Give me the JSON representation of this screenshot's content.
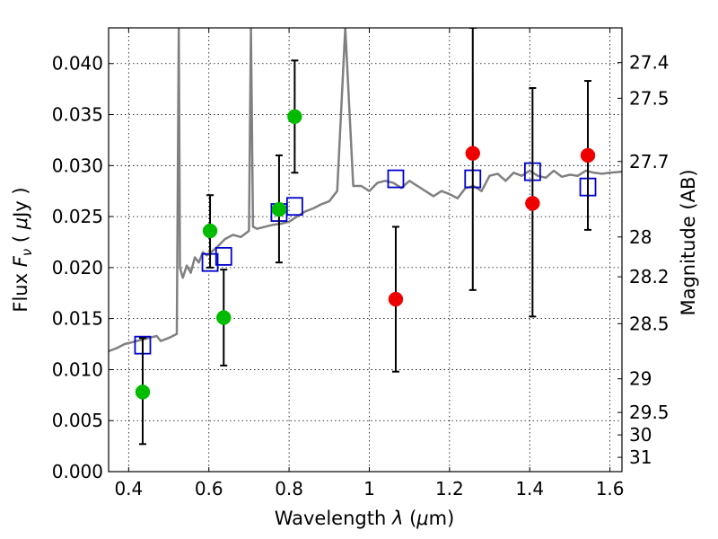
{
  "chart_data": {
    "type": "scatter",
    "title": "",
    "xlabel_parts": [
      "Wavelength  ",
      "λ",
      " (",
      "μ",
      "m)"
    ],
    "ylabel_parts": [
      "Flux  ",
      "F",
      "ν",
      "  (  ",
      "μ",
      "Jy )"
    ],
    "y2label": "Magnitude (AB)",
    "xlim": [
      0.35,
      1.63
    ],
    "ylim": [
      0.0,
      0.0435
    ],
    "grid": true,
    "x_ticks": [
      0.4,
      0.6,
      0.8,
      1.0,
      1.2,
      1.4,
      1.6
    ],
    "x_tick_labels": [
      "0.4",
      "0.6",
      "0.8",
      "1",
      "1.2",
      "1.4",
      "1.6"
    ],
    "y_ticks": [
      0.0,
      0.005,
      0.01,
      0.015,
      0.02,
      0.025,
      0.03,
      0.035,
      0.04
    ],
    "y_tick_labels": [
      "0.000",
      "0.005",
      "0.010",
      "0.015",
      "0.020",
      "0.025",
      "0.030",
      "0.035",
      "0.040"
    ],
    "y2_ticks": [
      {
        "label": "27.4",
        "flux": 0.0401
      },
      {
        "label": "27.5",
        "flux": 0.0366
      },
      {
        "label": "27.7",
        "flux": 0.0304
      },
      {
        "label": "28",
        "flux": 0.023
      },
      {
        "label": "28.2",
        "flux": 0.0191
      },
      {
        "label": "28.5",
        "flux": 0.0145
      },
      {
        "label": "29",
        "flux": 0.0091
      },
      {
        "label": "29.5",
        "flux": 0.0058
      },
      {
        "label": "30",
        "flux": 0.0036
      },
      {
        "label": "31",
        "flux": 0.0014
      }
    ],
    "series": [
      {
        "marker": "circle",
        "color": "#00bb00",
        "x": [
          0.435,
          0.603,
          0.637,
          0.775,
          0.814
        ],
        "y": [
          0.0078,
          0.0236,
          0.0151,
          0.0257,
          0.0348
        ],
        "yerr_low": [
          0.0027,
          0.02,
          0.0104,
          0.0205,
          0.0293
        ],
        "yerr_high": [
          0.0131,
          0.0271,
          0.0198,
          0.031,
          0.0403
        ]
      },
      {
        "marker": "circle",
        "color": "#ee0000",
        "x": [
          1.066,
          1.258,
          1.407,
          1.545
        ],
        "y": [
          0.0169,
          0.0312,
          0.0263,
          0.031
        ],
        "yerr_low": [
          0.0098,
          0.0178,
          0.0152,
          0.0237
        ],
        "yerr_high": [
          0.024,
          0.0435,
          0.0376,
          0.0383
        ]
      },
      {
        "marker": "open-square",
        "color": "#0000cc",
        "x": [
          0.435,
          0.603,
          0.637,
          0.775,
          0.814,
          1.066,
          1.258,
          1.407,
          1.545
        ],
        "y": [
          0.0124,
          0.0205,
          0.0211,
          0.0254,
          0.026,
          0.0287,
          0.0287,
          0.0294,
          0.0279
        ]
      },
      {
        "marker": "line",
        "color": "#808080",
        "x": [
          0.35,
          0.37,
          0.39,
          0.41,
          0.43,
          0.45,
          0.47,
          0.48,
          0.5,
          0.52,
          0.525,
          0.528,
          0.535,
          0.545,
          0.555,
          0.565,
          0.575,
          0.585,
          0.595,
          0.605,
          0.62,
          0.64,
          0.66,
          0.68,
          0.7,
          0.705,
          0.71,
          0.72,
          0.74,
          0.76,
          0.78,
          0.8,
          0.82,
          0.84,
          0.86,
          0.88,
          0.9,
          0.92,
          0.94,
          0.96,
          0.98,
          1.0,
          1.02,
          1.04,
          1.06,
          1.08,
          1.1,
          1.12,
          1.14,
          1.16,
          1.18,
          1.2,
          1.22,
          1.24,
          1.26,
          1.28,
          1.3,
          1.32,
          1.34,
          1.36,
          1.38,
          1.4,
          1.42,
          1.44,
          1.46,
          1.48,
          1.5,
          1.52,
          1.54,
          1.56,
          1.58,
          1.6,
          1.63
        ],
        "y": [
          0.0118,
          0.0121,
          0.0125,
          0.0127,
          0.0129,
          0.0131,
          0.0133,
          0.0128,
          0.0131,
          0.0135,
          0.0435,
          0.02,
          0.019,
          0.0202,
          0.0195,
          0.021,
          0.0205,
          0.0215,
          0.0212,
          0.0215,
          0.022,
          0.0228,
          0.0232,
          0.023,
          0.0236,
          0.0435,
          0.024,
          0.0238,
          0.024,
          0.0242,
          0.0243,
          0.0245,
          0.025,
          0.0255,
          0.0258,
          0.0262,
          0.0265,
          0.0275,
          0.0435,
          0.028,
          0.028,
          0.0275,
          0.0283,
          0.0285,
          0.0283,
          0.0278,
          0.0285,
          0.028,
          0.0275,
          0.027,
          0.0275,
          0.0272,
          0.0268,
          0.0278,
          0.028,
          0.0275,
          0.029,
          0.0292,
          0.0285,
          0.0293,
          0.029,
          0.0295,
          0.029,
          0.0288,
          0.0295,
          0.0289,
          0.0291,
          0.029,
          0.0295,
          0.0293,
          0.0292,
          0.0293,
          0.0294
        ]
      }
    ]
  }
}
